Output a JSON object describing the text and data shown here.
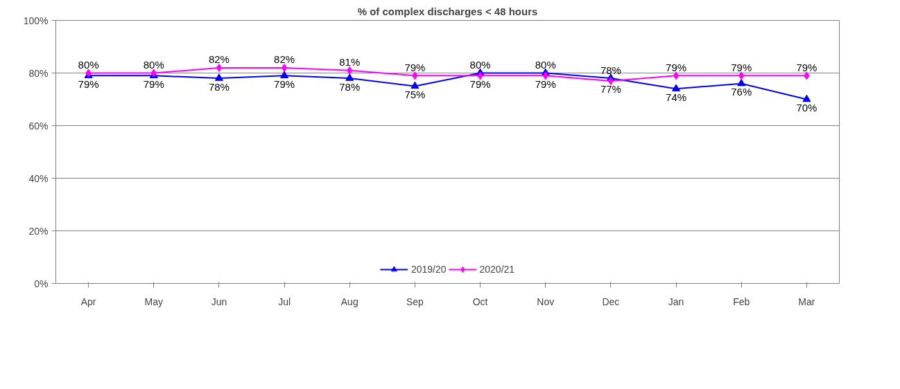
{
  "chart_data": {
    "type": "line",
    "title": "% of complex discharges < 48 hours",
    "categories": [
      "Apr",
      "May",
      "Jun",
      "Jul",
      "Aug",
      "Sep",
      "Oct",
      "Nov",
      "Dec",
      "Jan",
      "Feb",
      "Mar"
    ],
    "series": [
      {
        "name": "2019/20",
        "color": "#0000ff",
        "marker": "triangle",
        "values": [
          79,
          79,
          78,
          79,
          78,
          75,
          80,
          80,
          78,
          74,
          76,
          70
        ],
        "value_labels": [
          "79%",
          "79%",
          "78%",
          "79%",
          "78%",
          "75%",
          "80%",
          "80%",
          "78%",
          "74%",
          "76%",
          "70%"
        ]
      },
      {
        "name": "2020/21",
        "color": "#ff00ff",
        "marker": "diamond",
        "values": [
          80,
          80,
          82,
          82,
          81,
          79,
          79,
          79,
          77,
          79,
          79,
          79
        ],
        "value_labels": [
          "80%",
          "80%",
          "82%",
          "82%",
          "81%",
          "79%",
          "79%",
          "79%",
          "77%",
          "79%",
          "79%",
          "79%"
        ]
      }
    ],
    "ylim": [
      0,
      100
    ],
    "yticks": [
      {
        "value": 0,
        "label": "0%"
      },
      {
        "value": 20,
        "label": "20%"
      },
      {
        "value": 40,
        "label": "40%"
      },
      {
        "value": 60,
        "label": "60%"
      },
      {
        "value": 80,
        "label": "80%"
      },
      {
        "value": 100,
        "label": "100%"
      }
    ],
    "grid": "y",
    "legend": "bottom",
    "line_style": "solid"
  }
}
